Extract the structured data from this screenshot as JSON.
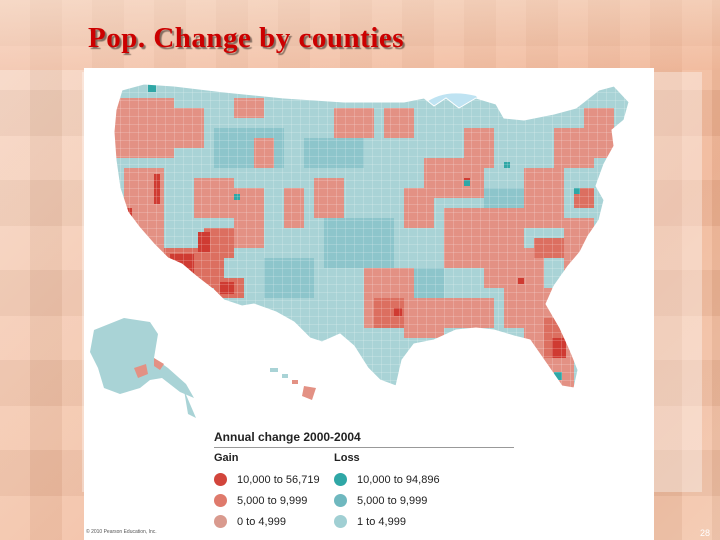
{
  "slide": {
    "title": "Pop. Change by counties",
    "page_number": "28"
  },
  "map": {
    "copyright": "© 2010 Pearson Education, Inc.",
    "colors": {
      "gain_high": "#d2453c",
      "gain_mid": "#df7a6c",
      "gain_low": "#e9a197",
      "loss_high": "#2fa7a6",
      "loss_mid": "#7dbdc4",
      "loss_low": "#a9d3d6",
      "water": "#bfe3f2"
    },
    "legend": {
      "title": "Annual change 2000-2004",
      "gain": {
        "heading": "Gain",
        "items": [
          {
            "label": "10,000 to 56,719",
            "color": "#d2453c"
          },
          {
            "label": "5,000 to 9,999",
            "color": "#df7a6c"
          },
          {
            "label": "0 to 4,999",
            "color": "#d99a8e"
          }
        ]
      },
      "loss": {
        "heading": "Loss",
        "items": [
          {
            "label": "10,000 to 94,896",
            "color": "#2fa7a6"
          },
          {
            "label": "5,000 to 9,999",
            "color": "#6fb8bf"
          },
          {
            "label": "1 to 4,999",
            "color": "#a0cfd3"
          }
        ]
      }
    }
  }
}
